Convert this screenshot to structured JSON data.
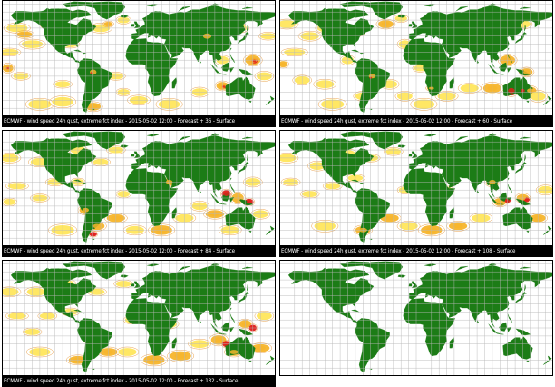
{
  "colors": {
    "land": "#1c7c16",
    "ocean": "#ffffff",
    "grid": "#b8b8b8",
    "frame": "#000000",
    "contour": "#e9a04a",
    "level1": "#ffe65c",
    "level2": "#f7b52c",
    "level3": "#e0201a"
  },
  "panels": [
    {
      "caption": "ECMWF - wind speed 24h gust, extreme fct index - 2015-05-02 12:00 - Forecast + 36 - Surface",
      "lead_hours": 36
    },
    {
      "caption": "ECMWF - wind speed 24h gust, extreme fct index - 2015-05-02 12:00 - Forecast + 60 - Surface",
      "lead_hours": 60
    },
    {
      "caption": "ECMWF - wind speed 24h gust, extreme fct index - 2015-05-02 12:00 - Forecast + 84 - Surface",
      "lead_hours": 84
    },
    {
      "caption": "ECMWF - wind speed 24h gust, extreme fct index - 2015-05-02 12:00 - Forecast + 108 - Surface",
      "lead_hours": 108
    },
    {
      "caption": "ECMWF - wind speed 24h gust, extreme fct index - 2015-05-02 12:00 - Forecast + 132 - Surface",
      "lead_hours": 132
    },
    {
      "caption": "",
      "lead_hours": null
    }
  ]
}
